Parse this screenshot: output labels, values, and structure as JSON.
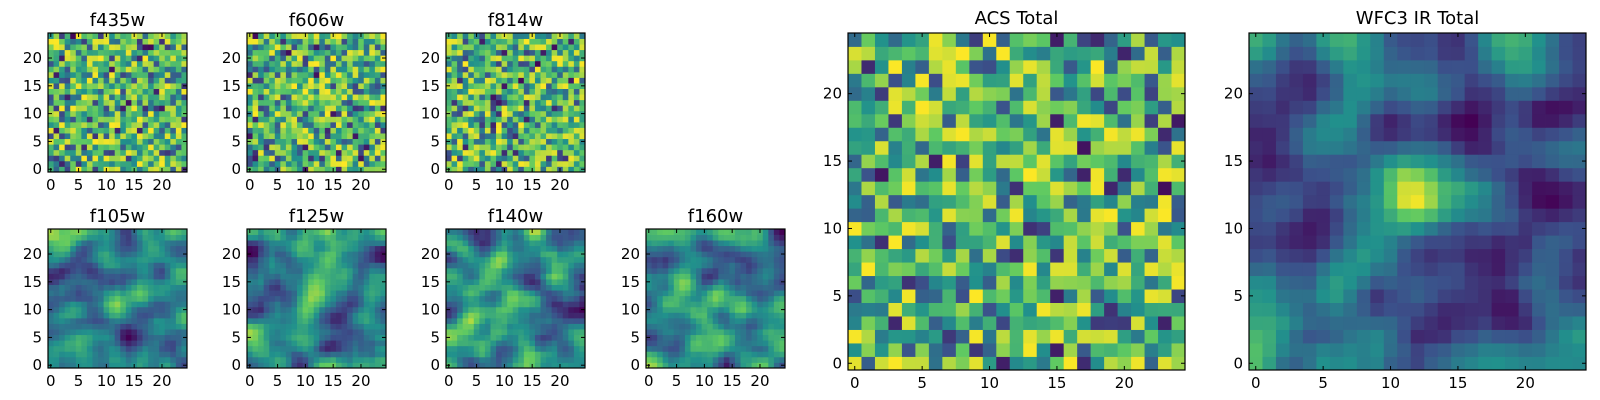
{
  "chart_data": {
    "type": "heatmap",
    "colormap": "viridis",
    "colormap_colors": [
      "#440154",
      "#3b528b",
      "#21918c",
      "#5ec962",
      "#fde725"
    ],
    "grid_size": 25,
    "xlim": [
      0,
      24
    ],
    "ylim": [
      0,
      24
    ],
    "panels": [
      {
        "title": "f435w",
        "xticks": [
          "0",
          "5",
          "10",
          "15",
          "20"
        ],
        "yticks": [
          "0",
          "5",
          "10",
          "15",
          "20"
        ],
        "pattern": "noise",
        "central_source_strength": 0.0
      },
      {
        "title": "f606w",
        "xticks": [
          "0",
          "5",
          "10",
          "15",
          "20"
        ],
        "yticks": [
          "0",
          "5",
          "10",
          "15",
          "20"
        ],
        "pattern": "noise",
        "central_source_strength": 0.0
      },
      {
        "title": "f814w",
        "xticks": [
          "0",
          "5",
          "10",
          "15",
          "20"
        ],
        "yticks": [
          "0",
          "5",
          "10",
          "15",
          "20"
        ],
        "pattern": "noise",
        "central_source_strength": 0.0
      },
      {
        "title": "f105w",
        "xticks": [
          "0",
          "5",
          "10",
          "15",
          "20"
        ],
        "yticks": [
          "0",
          "5",
          "10",
          "15",
          "20"
        ],
        "pattern": "smooth",
        "central_source_strength": 0.35
      },
      {
        "title": "f125w",
        "xticks": [
          "0",
          "5",
          "10",
          "15",
          "20"
        ],
        "yticks": [
          "0",
          "5",
          "10",
          "15",
          "20"
        ],
        "pattern": "smooth",
        "central_source_strength": 0.35
      },
      {
        "title": "f140w",
        "xticks": [
          "0",
          "5",
          "10",
          "15",
          "20"
        ],
        "yticks": [
          "0",
          "5",
          "10",
          "15",
          "20"
        ],
        "pattern": "smooth",
        "central_source_strength": 0.3
      },
      {
        "title": "f160w",
        "xticks": [
          "0",
          "5",
          "10",
          "15",
          "20"
        ],
        "yticks": [
          "0",
          "5",
          "10",
          "15",
          "20"
        ],
        "pattern": "smooth",
        "central_source_strength": 0.35
      },
      {
        "title": "ACS Total",
        "xticks": [
          "0",
          "5",
          "10",
          "15",
          "20"
        ],
        "yticks": [
          "0",
          "5",
          "10",
          "15",
          "20"
        ],
        "pattern": "noise",
        "central_source_strength": 0.0
      },
      {
        "title": "WFC3 IR Total",
        "xticks": [
          "0",
          "5",
          "10",
          "15",
          "20"
        ],
        "yticks": [
          "0",
          "5",
          "10",
          "15",
          "20"
        ],
        "pattern": "smooth",
        "central_source_strength": 0.75
      }
    ]
  }
}
